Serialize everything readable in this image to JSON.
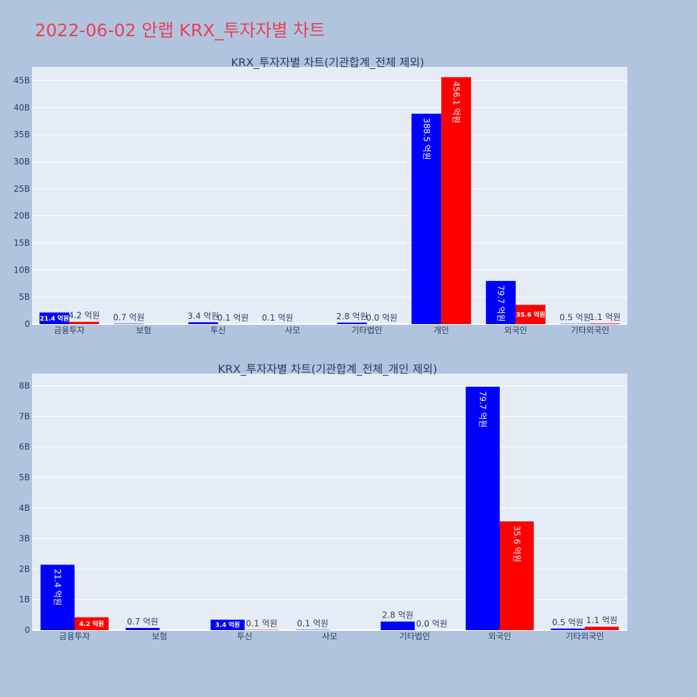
{
  "title": "2022-06-02 안랩 KRX_투자자별 차트",
  "colors": {
    "buy": "#0000ff",
    "sell": "#ff0000",
    "plot_bg": "#e5ecf6",
    "paper_bg": "#b0c4de",
    "title": "#e8425a"
  },
  "chart_data": [
    {
      "type": "bar",
      "title": "KRX_투자자별 차트(기관합계_전체 제외)",
      "categories": [
        "금융투자",
        "보험",
        "투신",
        "사모",
        "기타법인",
        "개인",
        "외국인",
        "기타외국인"
      ],
      "series": [
        {
          "values": [
            2.14,
            0.07,
            0.34,
            0.01,
            0.28,
            38.85,
            7.97,
            0.05
          ],
          "labels": [
            "21.4 억원",
            "0.7 억원",
            "3.4 억원",
            "0.1 억원",
            "2.8 억원",
            "388.5 억원",
            "79.7 억원",
            "0.5 억원"
          ]
        },
        {
          "values": [
            0.42,
            0,
            0.01,
            0,
            0.0,
            45.61,
            3.56,
            0.11
          ],
          "labels": [
            "4.2 억원",
            "",
            "0.1 억원",
            "",
            "0.0 억원",
            "456.1 억원",
            "35.6 억원",
            "1.1 억원"
          ]
        }
      ],
      "yticks": [
        "0",
        "5B",
        "10B",
        "15B",
        "20B",
        "25B",
        "30B",
        "35B",
        "40B",
        "45B"
      ],
      "ylim": [
        0,
        47.5
      ]
    },
    {
      "type": "bar",
      "title": "KRX_투자자별 차트(기관합계_전체_개인 제외)",
      "categories": [
        "금융투자",
        "보험",
        "투신",
        "사모",
        "기타법인",
        "외국인",
        "기타외국인"
      ],
      "series": [
        {
          "values": [
            2.14,
            0.07,
            0.34,
            0.01,
            0.28,
            7.97,
            0.05
          ],
          "labels": [
            "21.4 억원",
            "0.7 억원",
            "3.4 억원",
            "0.1 억원",
            "2.8 억원",
            "79.7 억원",
            "0.5 억원"
          ]
        },
        {
          "values": [
            0.42,
            0,
            0.01,
            0,
            0.0,
            3.56,
            0.11
          ],
          "labels": [
            "4.2 억원",
            "",
            "0.1 억원",
            "",
            "0.0 억원",
            "35.6 억원",
            "1.1 억원"
          ]
        }
      ],
      "yticks": [
        "0",
        "1B",
        "2B",
        "3B",
        "4B",
        "5B",
        "6B",
        "7B",
        "8B"
      ],
      "ylim": [
        0,
        8.4
      ]
    }
  ]
}
